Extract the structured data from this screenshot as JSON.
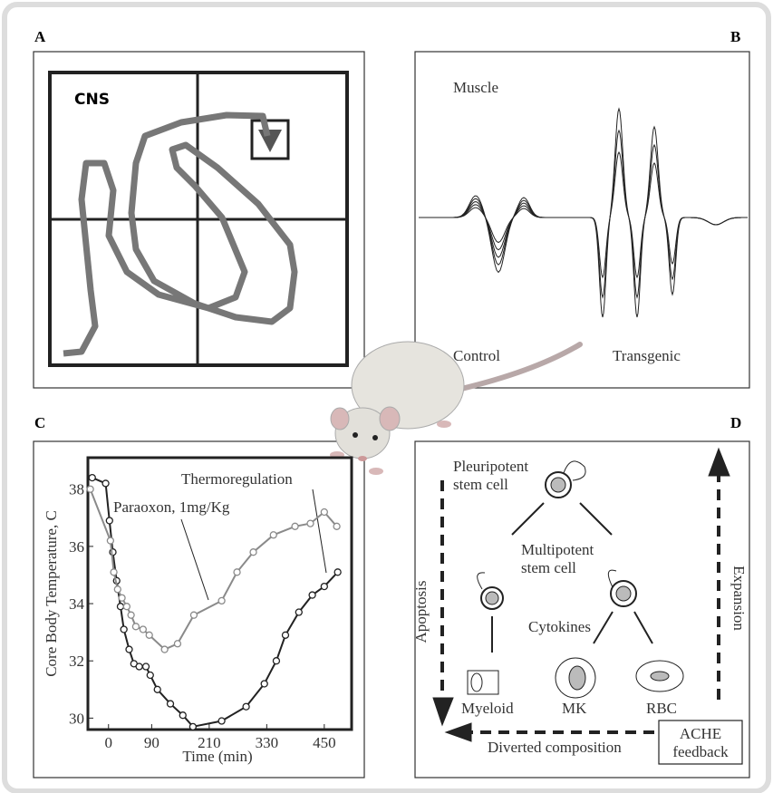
{
  "panels": {
    "a": {
      "label": "A",
      "text": "CNS"
    },
    "b": {
      "label": "B",
      "title": "Muscle",
      "left": "Control",
      "right": "Transgenic"
    },
    "c": {
      "label": "C"
    },
    "d": {
      "label": "D",
      "pleuripotent": [
        "Pleuripotent",
        "stem cell"
      ],
      "multipotent": [
        "Multipotent",
        "stem cell"
      ],
      "cytokines": "Cytokines",
      "myeloid": "Myeloid",
      "mk": "MK",
      "rbc": "RBC",
      "feedback": [
        "ACHE",
        "feedback"
      ],
      "diverted": "Diverted composition",
      "apoptosis": "Apoptosis",
      "expansion": "Expansion"
    }
  },
  "chart_data": {
    "type": "line",
    "xlabel": "Time (min)",
    "ylabel": "Core Body Temperature, C",
    "annotations": [
      "Thermoregulation",
      "Paraoxon, 1mg/Kg"
    ],
    "xlim": [
      -43,
      507
    ],
    "ylim": [
      29.6,
      39.1
    ],
    "xticks": [
      0,
      90,
      210,
      330,
      450
    ],
    "yticks": [
      30,
      32,
      34,
      36,
      38
    ],
    "series": [
      {
        "color": "#222222",
        "x": [
          -34,
          -6,
          2,
          9,
          17,
          25,
          32,
          43,
          53,
          64,
          78,
          87,
          102,
          129,
          155,
          176,
          236,
          287,
          325,
          350,
          369,
          397,
          425,
          450,
          478
        ],
        "values": [
          38.4,
          38.2,
          36.9,
          35.8,
          34.8,
          33.9,
          33.1,
          32.4,
          31.9,
          31.8,
          31.8,
          31.5,
          31.0,
          30.5,
          30.1,
          29.7,
          29.9,
          30.4,
          31.2,
          32.0,
          32.9,
          33.7,
          34.3,
          34.6,
          35.1
        ]
      },
      {
        "color": "#8a8a8a",
        "x": [
          -38,
          4,
          11,
          19,
          28,
          38,
          47,
          57,
          72,
          85,
          117,
          144,
          178,
          236,
          268,
          302,
          344,
          389,
          421,
          450,
          476
        ],
        "values": [
          38.0,
          36.2,
          35.1,
          34.5,
          34.2,
          33.9,
          33.6,
          33.2,
          33.1,
          32.9,
          32.4,
          32.6,
          33.6,
          34.1,
          35.1,
          35.8,
          36.4,
          36.7,
          36.8,
          37.2,
          36.7
        ]
      }
    ]
  }
}
